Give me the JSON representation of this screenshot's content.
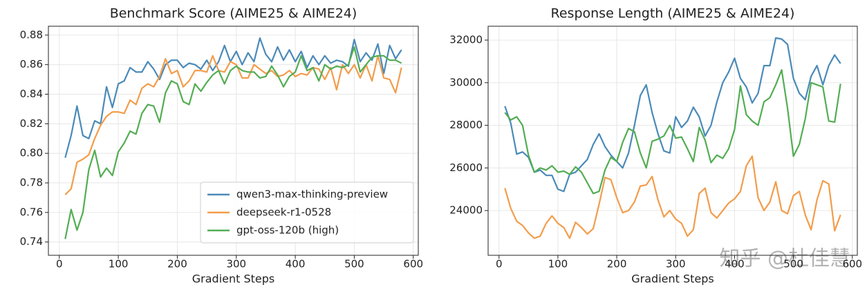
{
  "chart_data": [
    {
      "type": "line",
      "title": "Benchmark Score (AIME25 & AIME24)",
      "x_label": "Gradient Steps",
      "x": [
        10,
        20,
        30,
        40,
        50,
        60,
        70,
        80,
        90,
        100,
        110,
        120,
        130,
        140,
        150,
        160,
        170,
        180,
        190,
        200,
        210,
        220,
        230,
        240,
        250,
        260,
        270,
        280,
        290,
        300,
        310,
        320,
        330,
        340,
        350,
        360,
        370,
        380,
        390,
        400,
        410,
        420,
        430,
        440,
        450,
        460,
        470,
        480,
        490,
        500,
        510,
        520,
        530,
        540,
        550,
        560,
        570,
        580
      ],
      "xlim": [
        -18.5,
        608.5
      ],
      "xticks": [
        0,
        100,
        200,
        300,
        400,
        500,
        600
      ],
      "ylim": [
        0.731,
        0.886
      ],
      "yticks": [
        0.74,
        0.76,
        0.78,
        {
          "value": 0.8,
          "label": "0.80"
        },
        0.82,
        0.84,
        0.86,
        0.88
      ],
      "grid": true,
      "legend": "lower right",
      "series": [
        {
          "name": "qwen3-max-thinking-preview",
          "color": "#4a8ab8",
          "values": [
            0.797,
            0.812,
            0.832,
            0.812,
            0.81,
            0.822,
            0.82,
            0.845,
            0.831,
            0.847,
            0.849,
            0.858,
            0.855,
            0.855,
            0.862,
            0.857,
            0.85,
            0.86,
            0.863,
            0.863,
            0.858,
            0.861,
            0.86,
            0.857,
            0.863,
            0.856,
            0.862,
            0.873,
            0.862,
            0.869,
            0.86,
            0.868,
            0.862,
            0.878,
            0.867,
            0.862,
            0.872,
            0.863,
            0.87,
            0.862,
            0.869,
            0.858,
            0.866,
            0.86,
            0.866,
            0.861,
            0.863,
            0.862,
            0.859,
            0.877,
            0.862,
            0.868,
            0.863,
            0.874,
            0.854,
            0.873,
            0.864,
            0.87
          ]
        },
        {
          "name": "deepseek-r1-0528",
          "color": "#f39c4a",
          "values": [
            0.772,
            0.776,
            0.794,
            0.796,
            0.799,
            0.81,
            0.819,
            0.825,
            0.828,
            0.828,
            0.827,
            0.836,
            0.833,
            0.844,
            0.847,
            0.845,
            0.852,
            0.864,
            0.854,
            0.856,
            0.845,
            0.849,
            0.856,
            0.856,
            0.855,
            0.866,
            0.856,
            0.855,
            0.862,
            0.86,
            0.851,
            0.851,
            0.86,
            0.857,
            0.854,
            0.856,
            0.852,
            0.853,
            0.856,
            0.852,
            0.854,
            0.853,
            0.858,
            0.857,
            0.85,
            0.858,
            0.843,
            0.86,
            0.854,
            0.86,
            0.851,
            0.86,
            0.849,
            0.866,
            0.851,
            0.85,
            0.841,
            0.858
          ]
        },
        {
          "name": "gpt-oss-120b (high)",
          "color": "#52ad52",
          "values": [
            0.742,
            0.762,
            0.748,
            0.76,
            0.789,
            0.802,
            0.784,
            0.79,
            0.785,
            0.801,
            0.807,
            0.815,
            0.813,
            0.827,
            0.833,
            0.832,
            0.821,
            0.841,
            0.849,
            0.847,
            0.835,
            0.833,
            0.847,
            0.842,
            0.848,
            0.853,
            0.856,
            0.847,
            0.856,
            0.859,
            0.856,
            0.855,
            0.855,
            0.851,
            0.852,
            0.859,
            0.853,
            0.845,
            0.852,
            0.855,
            0.866,
            0.856,
            0.858,
            0.849,
            0.86,
            0.857,
            0.859,
            0.858,
            0.86,
            0.872,
            0.855,
            0.86,
            0.865,
            0.866,
            0.866,
            0.863,
            0.863,
            0.861
          ]
        }
      ]
    },
    {
      "type": "line",
      "title": "Response Length (AIME25 & AIME24)",
      "x_label": "Gradient Steps",
      "x": [
        10,
        20,
        30,
        40,
        50,
        60,
        70,
        80,
        90,
        100,
        110,
        120,
        130,
        140,
        150,
        160,
        170,
        180,
        190,
        200,
        210,
        220,
        230,
        240,
        250,
        260,
        270,
        280,
        290,
        300,
        310,
        320,
        330,
        340,
        350,
        360,
        370,
        380,
        390,
        400,
        410,
        420,
        430,
        440,
        450,
        460,
        470,
        480,
        490,
        500,
        510,
        520,
        530,
        540,
        550,
        560,
        570,
        580
      ],
      "xlim": [
        -18.5,
        608.5
      ],
      "xticks": [
        0,
        100,
        200,
        300,
        400,
        500,
        600
      ],
      "ylim": [
        21900,
        32650
      ],
      "yticks": [
        24000,
        26000,
        28000,
        30000,
        32000
      ],
      "grid": true,
      "watermark": "知乎 @杜佳慧",
      "series": [
        {
          "name": "qwen3-max-thinking-preview",
          "color": "#4a8ab8",
          "values": [
            28900,
            28100,
            26650,
            26750,
            26500,
            25800,
            25900,
            25650,
            25650,
            25000,
            24900,
            25700,
            25800,
            26100,
            26400,
            27100,
            27600,
            27000,
            26600,
            26300,
            26000,
            26700,
            28000,
            29400,
            29900,
            28600,
            27600,
            26800,
            26700,
            28400,
            27900,
            28200,
            28850,
            28400,
            27500,
            28000,
            29100,
            30000,
            30500,
            31150,
            30200,
            29800,
            29050,
            29500,
            30800,
            30800,
            32100,
            32050,
            31800,
            30200,
            29500,
            29200,
            30300,
            30800,
            29900,
            30800,
            31300,
            30900
          ]
        },
        {
          "name": "deepseek-r1-0528",
          "color": "#f39c4a",
          "values": [
            25050,
            24100,
            23500,
            23300,
            22950,
            22700,
            22800,
            23400,
            23750,
            23400,
            23200,
            22700,
            23450,
            23200,
            22900,
            23150,
            24300,
            25550,
            25450,
            24600,
            23900,
            24000,
            24400,
            25150,
            25200,
            25600,
            24500,
            23700,
            24000,
            23600,
            23400,
            22800,
            23100,
            24800,
            25050,
            23900,
            23650,
            24000,
            24350,
            24550,
            24900,
            26100,
            26550,
            24600,
            24000,
            24400,
            25350,
            24000,
            23850,
            24700,
            24900,
            23800,
            23100,
            24500,
            25400,
            25250,
            23050,
            23800
          ]
        },
        {
          "name": "gpt-oss-120b (high)",
          "color": "#52ad52",
          "values": [
            28600,
            28250,
            28400,
            28000,
            26600,
            25800,
            26000,
            25900,
            26100,
            25800,
            25850,
            25700,
            26050,
            25800,
            25300,
            24800,
            24900,
            25900,
            26500,
            26300,
            27200,
            27850,
            27700,
            26700,
            26000,
            27250,
            27350,
            27500,
            28000,
            27400,
            27450,
            26900,
            26300,
            27900,
            27300,
            26250,
            26600,
            26450,
            26900,
            27800,
            29850,
            28500,
            28200,
            28000,
            29100,
            29300,
            29900,
            30600,
            28800,
            26550,
            27100,
            28300,
            30000,
            29900,
            29800,
            28200,
            28150,
            29950
          ]
        }
      ]
    }
  ]
}
